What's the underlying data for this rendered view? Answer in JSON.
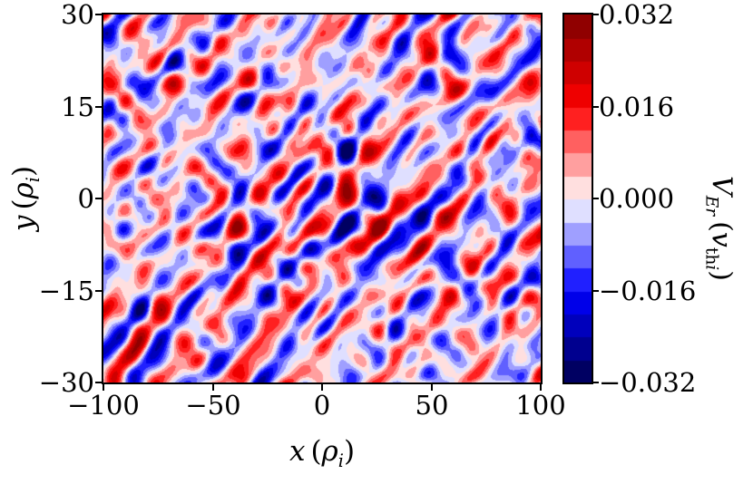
{
  "figure": {
    "background": "#ffffff",
    "axis_color": "#000000"
  },
  "chart_data": {
    "type": "heatmap",
    "title": "",
    "xlabel": {
      "text": "x (ρi)",
      "var": "x",
      "open": "(",
      "unit": "ρ",
      "unit_sub": "i",
      "close": ")"
    },
    "ylabel": {
      "text": "y (ρi)",
      "var": "y",
      "open": "(",
      "unit": "ρ",
      "unit_sub": "i",
      "close": ")"
    },
    "xlim": [
      -100,
      100
    ],
    "ylim": [
      -30,
      30
    ],
    "x_ticks": [
      -100,
      -50,
      0,
      50,
      100
    ],
    "x_tick_labels": [
      "−100",
      "−50",
      "0",
      "50",
      "100"
    ],
    "y_ticks": [
      30,
      15,
      0,
      -15,
      -30
    ],
    "y_tick_labels": [
      "30",
      "15",
      "0",
      "−15",
      "−30"
    ],
    "colorbar": {
      "label": {
        "text": "VEr (vthi)",
        "var": "V",
        "sub": "Er",
        "open": "(",
        "arg_var": "v",
        "arg_sub_roman": "th",
        "arg_sub_italic": "i",
        "close": ")"
      },
      "vmin": -0.032,
      "vmax": 0.032,
      "ticks": [
        0.032,
        0.016,
        0.0,
        -0.016,
        -0.032
      ],
      "tick_labels": [
        "0.032",
        "0.016",
        "0.000",
        "−0.016",
        "−0.032"
      ],
      "levels": 16,
      "colormap": "seismic",
      "colormap_stops": [
        {
          "pos": 0.0,
          "color": "#00004C"
        },
        {
          "pos": 0.25,
          "color": "#0000FF"
        },
        {
          "pos": 0.5,
          "color": "#FFFFFF"
        },
        {
          "pos": 0.75,
          "color": "#FF0000"
        },
        {
          "pos": 1.0,
          "color": "#800000"
        }
      ]
    },
    "field": {
      "description": "Turbulent eddy pattern of radial velocity fluctuations; elongated structures tilted diagonally up to the right, amplitudes mostly within ±0.02 with localized saturated red/blue eddies",
      "structure_scale_rho_i": {
        "x": 20,
        "y": 8
      },
      "rms_amplitude": 0.0102
    }
  }
}
